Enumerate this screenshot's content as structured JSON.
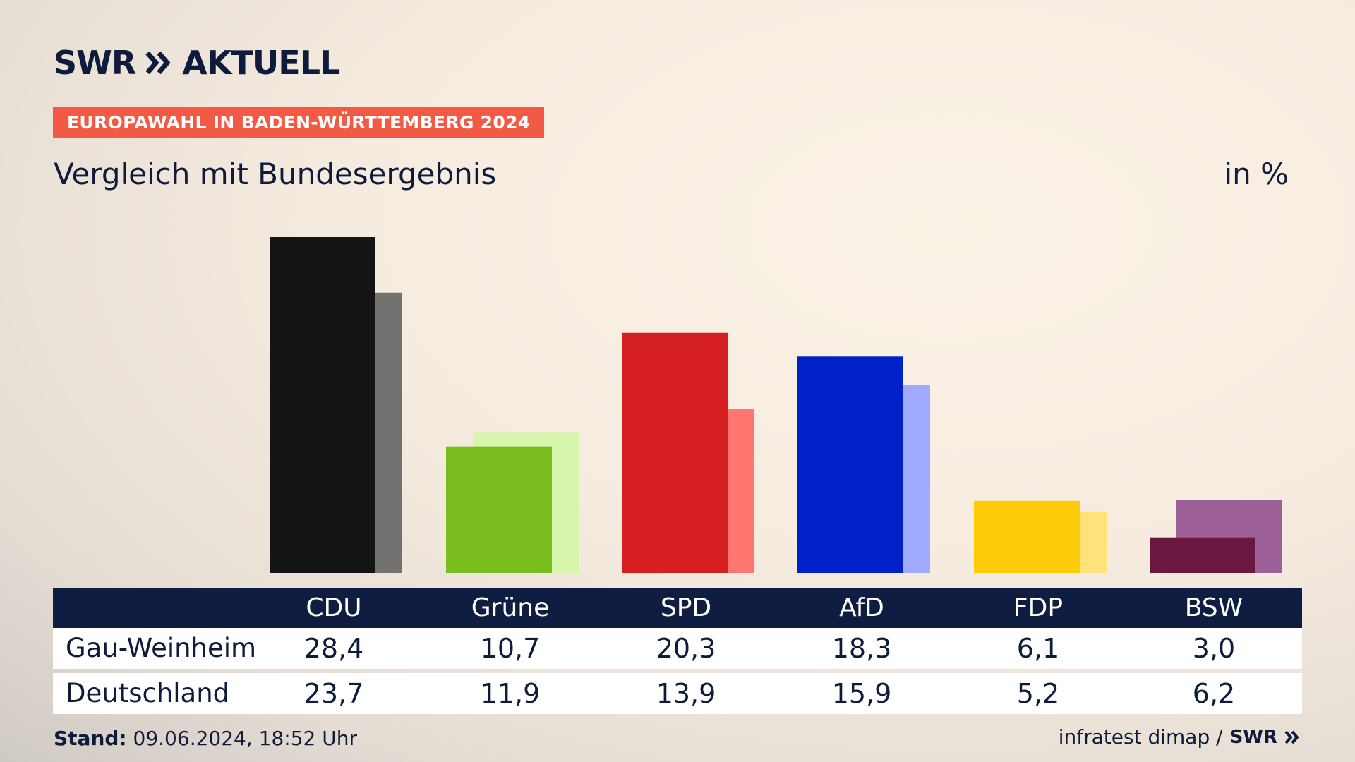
{
  "header": {
    "logo_text": "SWR",
    "logo_suffix": "AKTUELL",
    "badge": "EUROPAWAHL IN BADEN-WÜRTTEMBERG 2024",
    "subtitle": "Vergleich mit Bundesergebnis",
    "unit": "in %"
  },
  "table": {
    "row_labels": [
      "Gau-Weinheim",
      "Deutschland"
    ]
  },
  "footer": {
    "stand_label": "Stand:",
    "stand_value": "09.06.2024, 18:52 Uhr",
    "source": "infratest dimap /",
    "source_logo": "SWR"
  },
  "colors": {
    "text": "#0e1b3a",
    "badge": "#f25a45",
    "table_header": "#0f1e40"
  },
  "chart_data": {
    "type": "bar",
    "categories": [
      "CDU",
      "Grüne",
      "SPD",
      "AfD",
      "FDP",
      "BSW"
    ],
    "series": [
      {
        "name": "Gau-Weinheim",
        "values": [
          28.4,
          10.7,
          20.3,
          18.3,
          6.1,
          3.0
        ],
        "colors": [
          "#141414",
          "#7abd1e",
          "#d51f21",
          "#0021c7",
          "#ffcc0b",
          "#6b1840"
        ]
      },
      {
        "name": "Deutschland",
        "values": [
          23.7,
          11.9,
          13.9,
          15.9,
          5.2,
          6.2
        ],
        "colors": [
          "#727170",
          "#d5f6ab",
          "#ff7570",
          "#9eabff",
          "#ffe27a",
          "#9c5f98"
        ]
      }
    ],
    "value_labels": [
      [
        "28,4",
        "10,7",
        "20,3",
        "18,3",
        "6,1",
        "3,0"
      ],
      [
        "23,7",
        "11,9",
        "13,9",
        "15,9",
        "5,2",
        "6,2"
      ]
    ],
    "ylim": [
      0,
      28.4
    ],
    "legend": "none",
    "grid": false
  }
}
